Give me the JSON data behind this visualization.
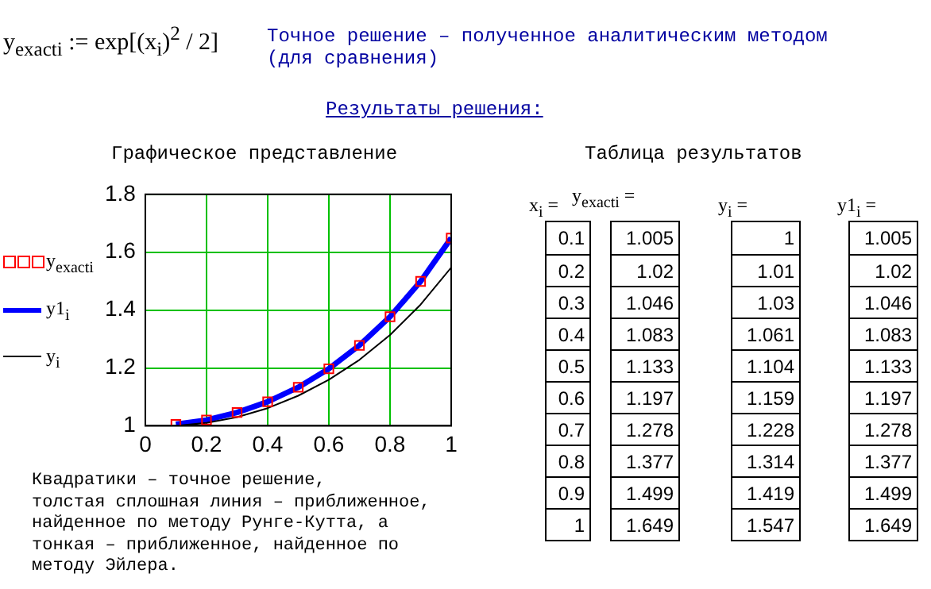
{
  "chart_data": [
    {
      "type": "line",
      "title": "Графическое представление",
      "x": [
        0.1,
        0.2,
        0.3,
        0.4,
        0.5,
        0.6,
        0.7,
        0.8,
        0.9,
        1
      ],
      "series": [
        {
          "name": "y$_{exact}$$_{i}$",
          "type": "scatter",
          "marker": "square",
          "color": "#ff0000",
          "values": [
            1.005,
            1.02,
            1.046,
            1.083,
            1.133,
            1.197,
            1.278,
            1.377,
            1.499,
            1.649
          ]
        },
        {
          "name": "y$_{i}$",
          "marker": "none",
          "line_style": "solid",
          "color": "#000000",
          "values": [
            1,
            1.01,
            1.03,
            1.061,
            1.104,
            1.159,
            1.228,
            1.314,
            1.419,
            1.547
          ]
        },
        {
          "name": "y1$_{i}$",
          "marker": "none",
          "line_style": "solid",
          "color": "#0000ff",
          "values": [
            1.005,
            1.02,
            1.046,
            1.083,
            1.133,
            1.197,
            1.278,
            1.377,
            1.499,
            1.649
          ]
        }
      ],
      "xlim": [
        0,
        1
      ],
      "xticks": [
        0,
        0.2,
        0.4,
        0.6,
        0.8,
        1
      ],
      "ylim": [
        1,
        1.8
      ],
      "yticks": [
        1,
        1.2,
        1.4,
        1.6,
        1.8
      ],
      "grid": true,
      "legend": "left",
      "annotations": [
        "y$_{exact}$$_{i}$ := exp[(x$_{i}$)$^{2}$ / 2]",
        "Точное решение – полученное аналитическим методом\n(для сравнения)",
        "Результаты решения:",
        "Квадратики – точное решение,\nтолстая сплошная линия – приближенное,\nнайденное по методу Рунге-Кутта, а\nтонкая – приближенное, найденное по\nметоду Эйлера."
      ]
    },
    {
      "type": "heatmap",
      "title": "Таблица результатов",
      "data_labels": true,
      "categories": [
        "y$_{exact}$$_{i}$ =",
        "y$_{i}$ =",
        "y1$_{i}$ ="
      ],
      "y_categories": [
        "0.1",
        "0.2",
        "0.3",
        "0.4",
        "0.5",
        "0.6",
        "0.7",
        "0.8",
        "0.9",
        "1"
      ],
      "cells": [
        [
          1.005,
          1,
          1.005
        ],
        [
          1.02,
          1.01,
          1.02
        ],
        [
          1.046,
          1.03,
          1.046
        ],
        [
          1.083,
          1.061,
          1.083
        ],
        [
          1.133,
          1.104,
          1.133
        ],
        [
          1.197,
          1.159,
          1.197
        ],
        [
          1.278,
          1.228,
          1.278
        ],
        [
          1.377,
          1.314,
          1.377
        ],
        [
          1.499,
          1.419,
          1.499
        ],
        [
          1.649,
          1.547,
          1.649
        ]
      ],
      "annotations": [
        "x$_{i}$ ="
      ]
    }
  ]
}
